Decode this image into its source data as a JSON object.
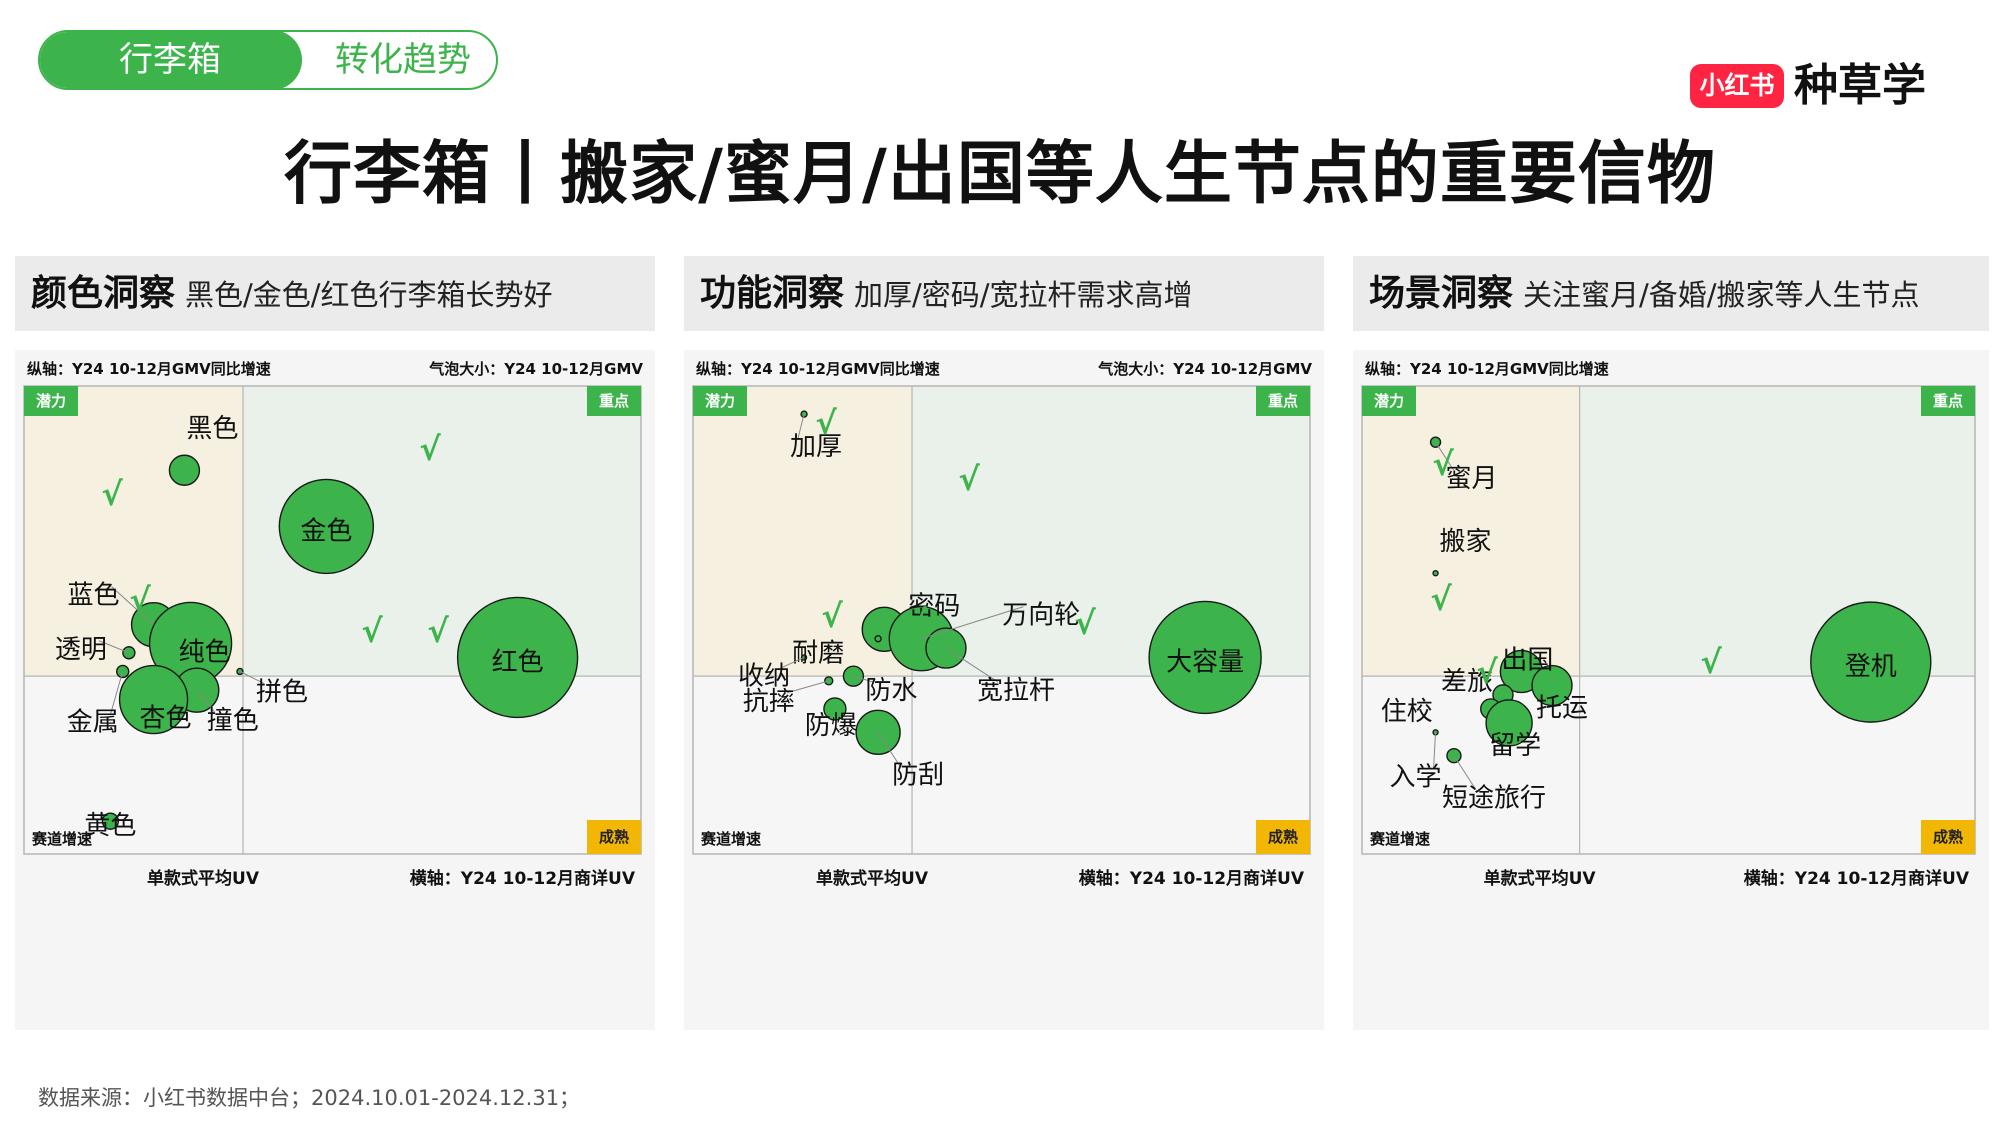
{
  "header": {
    "tab_active": "行李箱",
    "tab_inactive": "转化趋势",
    "brand_logo": "小红书",
    "brand_name": "种草学",
    "title": "行李箱丨搬家/蜜月/出国等人生节点的重要信物"
  },
  "sections": [
    {
      "label": "颜色洞察",
      "sub": "黑色/金色/红色行李箱长势好"
    },
    {
      "label": "功能洞察",
      "sub": "加厚/密码/宽拉杆需求高增"
    },
    {
      "label": "场景洞察",
      "sub": "关注蜜月/备婚/搬家等人生节点"
    }
  ],
  "quadrant_labels": {
    "potential": "潜力",
    "key": "重点",
    "mature": "成熟",
    "track_growth": "赛道增速"
  },
  "colors": {
    "bubble": "#3cb44b",
    "check": "#3cb44b",
    "potential_bg": "#f6f0e1",
    "key_bg": "#e9f1ea",
    "mature_tag": "#f2b705",
    "tag_green": "#3cb44b"
  },
  "chart_data": [
    {
      "type": "scatter",
      "ylabel": "纵轴：Y24 10-12月GMV同比增速",
      "size_label": "气泡大小：Y24 10-12月GMV",
      "xlabel": "横轴：Y24 10-12月商详UV",
      "x_axis_left_label": "单款式平均UV",
      "xlim": [
        0,
        100
      ],
      "ylim": [
        0,
        100
      ],
      "points": [
        {
          "name": "黑色",
          "x": 26,
          "y": 82,
          "r": 15,
          "check": true
        },
        {
          "name": "金色",
          "x": 49,
          "y": 70,
          "r": 47,
          "check": true
        },
        {
          "name": "蓝色",
          "x": 21,
          "y": 49,
          "r": 22,
          "check": true
        },
        {
          "name": "纯色",
          "x": 27,
          "y": 45,
          "r": 41
        },
        {
          "name": "透明",
          "x": 17,
          "y": 43,
          "r": 6
        },
        {
          "name": "拼色",
          "x": 35,
          "y": 39,
          "r": 3
        },
        {
          "name": "金属",
          "x": 16,
          "y": 39,
          "r": 6
        },
        {
          "name": "撞色",
          "x": 28,
          "y": 35,
          "r": 22
        },
        {
          "name": "杏色",
          "x": 21,
          "y": 33,
          "r": 34
        },
        {
          "name": "黄色",
          "x": 14,
          "y": 7,
          "r": 8
        },
        {
          "name": "红色",
          "x": 80,
          "y": 42,
          "r": 60,
          "check": true
        }
      ],
      "extra_checks": 3
    },
    {
      "type": "scatter",
      "ylabel": "纵轴：Y24 10-12月GMV同比增速",
      "size_label": "气泡大小：Y24 10-12月GMV",
      "xlabel": "横轴：Y24 10-12月商详UV",
      "x_axis_left_label": "单款式平均UV",
      "xlim": [
        0,
        100
      ],
      "ylim": [
        0,
        100
      ],
      "points": [
        {
          "name": "加厚",
          "x": 18,
          "y": 94,
          "r": 3,
          "check": true
        },
        {
          "name": "密码",
          "x": 31,
          "y": 48,
          "r": 22,
          "check": true
        },
        {
          "name": "万向轮",
          "x": 37,
          "y": 46,
          "r": 32,
          "check": true
        },
        {
          "name": "耐磨",
          "x": 30,
          "y": 46,
          "r": 3
        },
        {
          "name": "宽拉杆",
          "x": 41,
          "y": 44,
          "r": 20
        },
        {
          "name": "收纳",
          "x": 18,
          "y": 42,
          "r": 2
        },
        {
          "name": "防水",
          "x": 26,
          "y": 38,
          "r": 10
        },
        {
          "name": "抗摔",
          "x": 22,
          "y": 37,
          "r": 4
        },
        {
          "name": "防爆",
          "x": 23,
          "y": 31,
          "r": 11
        },
        {
          "name": "防刮",
          "x": 30,
          "y": 26,
          "r": 22
        },
        {
          "name": "大容量",
          "x": 83,
          "y": 42,
          "r": 56,
          "check": true
        }
      ],
      "extra_checks": 1
    },
    {
      "type": "scatter",
      "ylabel": "纵轴：Y24 10-12月GMV同比增速",
      "xlabel": "横轴：Y24 10-12月商详UV",
      "x_axis_left_label": "单款式平均UV",
      "xlim": [
        0,
        100
      ],
      "ylim": [
        0,
        100
      ],
      "points": [
        {
          "name": "蜜月",
          "x": 12,
          "y": 88,
          "r": 5,
          "check": true
        },
        {
          "name": "搬家",
          "x": 12,
          "y": 60,
          "r": 1,
          "check": true
        },
        {
          "name": "出国",
          "x": 26,
          "y": 39,
          "r": 21
        },
        {
          "name": "托运",
          "x": 31,
          "y": 36,
          "r": 20,
          "check": true
        },
        {
          "name": "差旅",
          "x": 23,
          "y": 34,
          "r": 10
        },
        {
          "name": "住校",
          "x": 21,
          "y": 31,
          "r": 10
        },
        {
          "name": "留学",
          "x": 24,
          "y": 28,
          "r": 23
        },
        {
          "name": "入学",
          "x": 12,
          "y": 26,
          "r": 2
        },
        {
          "name": "短途旅行",
          "x": 15,
          "y": 21,
          "r": 7
        },
        {
          "name": "登机",
          "x": 83,
          "y": 41,
          "r": 60,
          "check": true
        }
      ],
      "extra_checks": 0
    }
  ],
  "footnote": "数据来源：小红书数据中台；2024.10.01-2024.12.31；"
}
